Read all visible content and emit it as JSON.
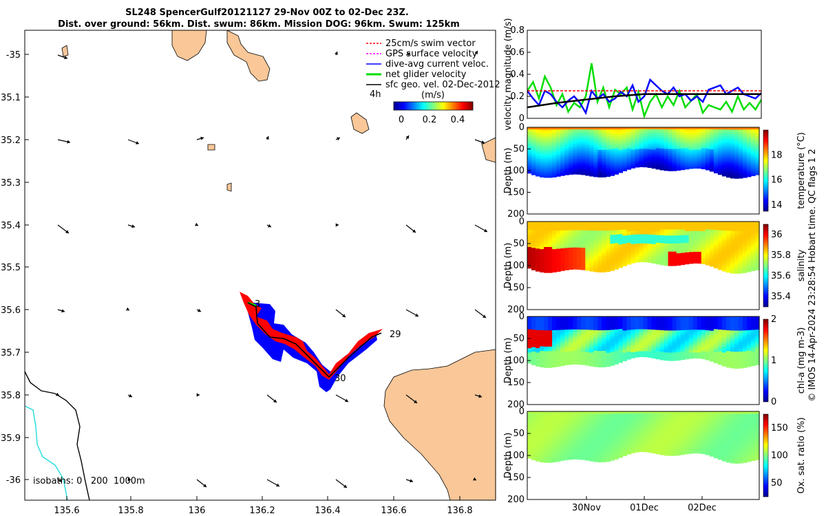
{
  "title": {
    "line1": "SL248 SpencerGulf20121127 29-Nov 00Z to 02-Dec 23Z.",
    "line2": "Dist. over ground: 56km. Dist. swum: 86km. Mission DOG: 96km. Swum: 125km"
  },
  "colors": {
    "land": "#f9c798",
    "swim": "#ff0000",
    "gps": "#ff00ff",
    "dac": "#0000ff",
    "net": "#00dd00",
    "sfc": "#000000",
    "iso200": "#000000",
    "iso1000": "#22dddd"
  },
  "map": {
    "lon_ticks": [
      "135.6",
      "135.8",
      "136",
      "136.2",
      "136.4",
      "136.6",
      "136.8"
    ],
    "lat_ticks": [
      "-35",
      "35.1",
      "35.2",
      "35.3",
      "35.4",
      "35.5",
      "35.6",
      "35.7",
      "35.8",
      "35.9",
      "-36"
    ],
    "day_labels": [
      "3",
      "29",
      "30"
    ],
    "time_label": "4h",
    "isobaths_label": "isobaths: 0   200  1000m",
    "legend": {
      "items": [
        "25cm/s swim vector",
        "GPS surface velocity",
        "dive-avg current veloc.",
        "net glider velocity",
        "sfc geo. vel. 02-Dec-2012"
      ],
      "colorbar_title": "(m/s)",
      "colorbar_ticks": [
        "0",
        "0.2",
        "0.4"
      ]
    }
  },
  "side": {
    "date_ticks": [
      "30Nov",
      "01Dec",
      "02Dec"
    ],
    "copyright": "© IMOS 14-Apr-2024 23:28:54 Hobart time. QC flags 1  2"
  },
  "chart_data": [
    {
      "type": "line",
      "ylabel": "velocity magnitude (m/s)",
      "ylim": [
        0,
        0.8
      ],
      "yticks": [
        "0",
        "0.2",
        "0.4",
        "0.6",
        "0.8"
      ],
      "xlim_days": [
        0,
        4
      ],
      "series": [
        {
          "color": "#00dd00",
          "x": [
            0,
            0.1,
            0.2,
            0.3,
            0.4,
            0.5,
            0.6,
            0.7,
            0.8,
            0.9,
            1.0,
            1.1,
            1.2,
            1.3,
            1.4,
            1.5,
            1.6,
            1.7,
            1.8,
            1.9,
            2.0,
            2.1,
            2.2,
            2.3,
            2.4,
            2.5,
            2.6,
            2.7,
            2.8,
            2.9,
            3.0,
            3.1,
            3.2,
            3.3,
            3.4,
            3.5,
            3.6,
            3.7,
            3.8,
            3.9,
            4.0
          ],
          "values": [
            0.25,
            0.33,
            0.18,
            0.38,
            0.28,
            0.12,
            0.22,
            0.06,
            0.14,
            0.1,
            0.2,
            0.5,
            0.15,
            0.28,
            0.1,
            0.26,
            0.22,
            0.28,
            0.08,
            0.24,
            0.02,
            0.15,
            0.22,
            0.1,
            0.2,
            0.12,
            0.25,
            0.1,
            0.16,
            0.22,
            0.05,
            0.12,
            0.1,
            0.08,
            0.15,
            0.06,
            0.2,
            0.08,
            0.14,
            0.08,
            0.17
          ]
        },
        {
          "color": "#0000ff",
          "x": [
            0,
            0.1,
            0.2,
            0.3,
            0.4,
            0.5,
            0.6,
            0.7,
            0.8,
            0.9,
            1.0,
            1.1,
            1.2,
            1.3,
            1.4,
            1.5,
            1.6,
            1.7,
            1.8,
            1.9,
            2.0,
            2.1,
            2.2,
            2.3,
            2.4,
            2.5,
            2.6,
            2.7,
            2.8,
            2.9,
            3.0,
            3.1,
            3.2,
            3.3,
            3.4,
            3.5,
            3.6,
            3.7,
            3.8,
            3.9,
            4.0
          ],
          "values": [
            0.25,
            0.18,
            0.12,
            0.25,
            0.22,
            0.15,
            0.1,
            0.16,
            0.2,
            0.14,
            0.05,
            0.25,
            0.18,
            0.22,
            0.15,
            0.18,
            0.24,
            0.2,
            0.3,
            0.15,
            0.2,
            0.35,
            0.3,
            0.25,
            0.22,
            0.28,
            0.2,
            0.22,
            0.16,
            0.2,
            0.15,
            0.26,
            0.28,
            0.3,
            0.22,
            0.25,
            0.28,
            0.22,
            0.2,
            0.18,
            0.23
          ]
        },
        {
          "color": "#000000",
          "x": [
            0,
            0.5,
            1.0,
            1.5,
            2.0,
            2.5,
            3.0,
            3.5,
            4.0
          ],
          "values": [
            0.1,
            0.14,
            0.17,
            0.2,
            0.22,
            0.22,
            0.22,
            0.22,
            0.22
          ]
        },
        {
          "color": "#ff0000",
          "x": [
            0,
            4
          ],
          "values": [
            0.25,
            0.25
          ]
        }
      ]
    },
    {
      "type": "heatmap",
      "variable": "temperature",
      "ylabel": "Depth (m)",
      "cbar_label": "temperature (°C)",
      "clim": [
        13.5,
        20
      ],
      "cbar_ticks": [
        "14",
        "16",
        "18"
      ],
      "ylim": [
        0,
        200
      ],
      "yticks": [
        "0",
        "50",
        "100",
        "150",
        "200"
      ]
    },
    {
      "type": "heatmap",
      "variable": "salinity",
      "ylabel": "Depth (m)",
      "cbar_label": "salinity",
      "clim": [
        35.3,
        36.1
      ],
      "cbar_ticks": [
        "35.4",
        "35.6",
        "35.8",
        "36"
      ],
      "ylim": [
        0,
        200
      ],
      "yticks": [
        "0",
        "50",
        "100",
        "150",
        "200"
      ]
    },
    {
      "type": "heatmap",
      "variable": "chl-a",
      "ylabel": "Depth (m)",
      "cbar_label": "chl-a (mg m-3)",
      "clim": [
        0,
        2
      ],
      "cbar_ticks": [
        "0",
        "1",
        "2"
      ],
      "ylim": [
        0,
        200
      ],
      "yticks": [
        "0",
        "50",
        "100",
        "150",
        "200"
      ]
    },
    {
      "type": "heatmap",
      "variable": "oxygen saturation",
      "ylabel": "Depth (m)",
      "cbar_label": "Ox. sat. ratio (%)",
      "clim": [
        25,
        175
      ],
      "cbar_ticks": [
        "50",
        "100",
        "150"
      ],
      "ylim": [
        0,
        200
      ],
      "yticks": [
        "0",
        "50",
        "100",
        "150",
        "200"
      ]
    }
  ]
}
